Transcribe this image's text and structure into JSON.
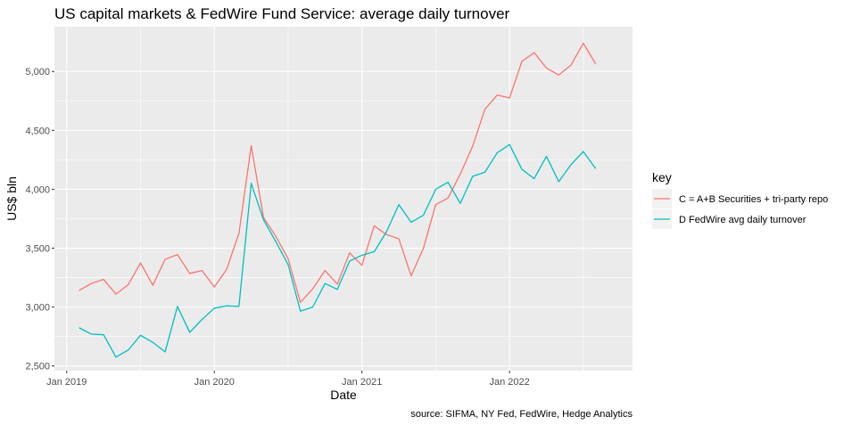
{
  "chart_data": {
    "type": "line",
    "title": "US capital markets & FedWire Fund Service: average daily turnover",
    "xlabel": "Date",
    "ylabel": "US$ bln",
    "caption": "source: SIFMA, NY Fed, FedWire, Hedge Analytics",
    "legend_title": "key",
    "legend_position": "right",
    "grid": true,
    "x_ticks": [
      "Jan 2019",
      "Jan 2020",
      "Jan 2021",
      "Jan 2022"
    ],
    "y_ticks": [
      2500,
      3000,
      3500,
      4000,
      4500,
      5000
    ],
    "y_tick_labels": [
      "2,500",
      "3,000",
      "3,500",
      "4,000",
      "4,500",
      "5,000"
    ],
    "ylim": [
      2460,
      5380
    ],
    "xlim": [
      "2018-12",
      "2022-11"
    ],
    "x": [
      "2019-02",
      "2019-03",
      "2019-04",
      "2019-05",
      "2019-06",
      "2019-07",
      "2019-08",
      "2019-09",
      "2019-10",
      "2019-11",
      "2019-12",
      "2020-01",
      "2020-02",
      "2020-03",
      "2020-04",
      "2020-05",
      "2020-06",
      "2020-07",
      "2020-08",
      "2020-09",
      "2020-10",
      "2020-11",
      "2020-12",
      "2021-01",
      "2021-02",
      "2021-03",
      "2021-04",
      "2021-05",
      "2021-06",
      "2021-07",
      "2021-08",
      "2021-09",
      "2021-10",
      "2021-11",
      "2021-12",
      "2022-01",
      "2022-02",
      "2022-03",
      "2022-04",
      "2022-05",
      "2022-06",
      "2022-07",
      "2022-08"
    ],
    "series": [
      {
        "name": "C = A+B Securities + tri-party repo",
        "color": "#F8766D",
        "values": [
          3140,
          3200,
          3235,
          3110,
          3190,
          3375,
          3185,
          3405,
          3445,
          3285,
          3310,
          3170,
          3320,
          3625,
          4370,
          3760,
          3600,
          3410,
          3040,
          3155,
          3310,
          3195,
          3460,
          3355,
          3690,
          3615,
          3580,
          3265,
          3500,
          3870,
          3925,
          4130,
          4365,
          4680,
          4800,
          4775,
          5085,
          5160,
          5030,
          4970,
          5055,
          5240,
          5065
        ]
      },
      {
        "name": "D FedWire avg daily turnover",
        "color": "#00BFC4",
        "values": [
          2825,
          2770,
          2765,
          2575,
          2635,
          2760,
          2700,
          2620,
          3005,
          2785,
          2895,
          2990,
          3010,
          3005,
          4050,
          3740,
          3555,
          3360,
          2965,
          3000,
          3200,
          3150,
          3390,
          3440,
          3470,
          3640,
          3870,
          3720,
          3780,
          4000,
          4060,
          3880,
          4110,
          4145,
          4310,
          4380,
          4170,
          4090,
          4280,
          4065,
          4210,
          4320,
          4175
        ]
      }
    ]
  }
}
